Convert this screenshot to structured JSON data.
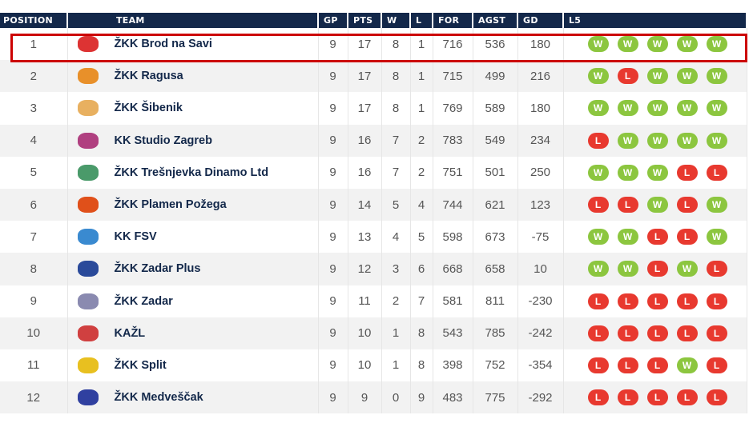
{
  "headers": {
    "position": "POSITION",
    "team": "TEAM",
    "gp": "GP",
    "pts": "PTS",
    "w": "W",
    "l": "L",
    "for": "FOR",
    "agst": "AGST",
    "gd": "GD",
    "l5": "L5"
  },
  "colors": {
    "header_bg": "#13284a",
    "win": "#8cc63f",
    "loss": "#e8392f",
    "highlight": "#cc0000"
  },
  "highlighted_row": 1,
  "rows": [
    {
      "pos": "1",
      "team": "ŽKK Brod na Savi",
      "gp": "9",
      "pts": "17",
      "w": "8",
      "l": "1",
      "for": "716",
      "agst": "536",
      "gd": "180",
      "l5": [
        "W",
        "W",
        "W",
        "W",
        "W"
      ],
      "logo": "#d33"
    },
    {
      "pos": "2",
      "team": "ŽKK Ragusa",
      "gp": "9",
      "pts": "17",
      "w": "8",
      "l": "1",
      "for": "715",
      "agst": "499",
      "gd": "216",
      "l5": [
        "W",
        "L",
        "W",
        "W",
        "W"
      ],
      "logo": "#e8902a"
    },
    {
      "pos": "3",
      "team": "ŽKK Šibenik",
      "gp": "9",
      "pts": "17",
      "w": "8",
      "l": "1",
      "for": "769",
      "agst": "589",
      "gd": "180",
      "l5": [
        "W",
        "W",
        "W",
        "W",
        "W"
      ],
      "logo": "#e8b060"
    },
    {
      "pos": "4",
      "team": "KK Studio Zagreb",
      "gp": "9",
      "pts": "16",
      "w": "7",
      "l": "2",
      "for": "783",
      "agst": "549",
      "gd": "234",
      "l5": [
        "L",
        "W",
        "W",
        "W",
        "W"
      ],
      "logo": "#b04080"
    },
    {
      "pos": "5",
      "team": "ŽKK Trešnjevka Dinamo Ltd",
      "gp": "9",
      "pts": "16",
      "w": "7",
      "l": "2",
      "for": "751",
      "agst": "501",
      "gd": "250",
      "l5": [
        "W",
        "W",
        "W",
        "L",
        "L"
      ],
      "logo": "#4a9a6a"
    },
    {
      "pos": "6",
      "team": "ŽKK Plamen Požega",
      "gp": "9",
      "pts": "14",
      "w": "5",
      "l": "4",
      "for": "744",
      "agst": "621",
      "gd": "123",
      "l5": [
        "L",
        "L",
        "W",
        "L",
        "W"
      ],
      "logo": "#e0501a"
    },
    {
      "pos": "7",
      "team": "KK FSV",
      "gp": "9",
      "pts": "13",
      "w": "4",
      "l": "5",
      "for": "598",
      "agst": "673",
      "gd": "-75",
      "l5": [
        "W",
        "W",
        "L",
        "L",
        "W"
      ],
      "logo": "#3a8ad0"
    },
    {
      "pos": "8",
      "team": "ŽKK Zadar Plus",
      "gp": "9",
      "pts": "12",
      "w": "3",
      "l": "6",
      "for": "668",
      "agst": "658",
      "gd": "10",
      "l5": [
        "W",
        "W",
        "L",
        "W",
        "L"
      ],
      "logo": "#2a4a9a"
    },
    {
      "pos": "9",
      "team": "ŽKK Zadar",
      "gp": "9",
      "pts": "11",
      "w": "2",
      "l": "7",
      "for": "581",
      "agst": "811",
      "gd": "-230",
      "l5": [
        "L",
        "L",
        "L",
        "L",
        "L"
      ],
      "logo": "#8a8ab0"
    },
    {
      "pos": "10",
      "team": "KAŽL",
      "gp": "9",
      "pts": "10",
      "w": "1",
      "l": "8",
      "for": "543",
      "agst": "785",
      "gd": "-242",
      "l5": [
        "L",
        "L",
        "L",
        "L",
        "L"
      ],
      "logo": "#d04040"
    },
    {
      "pos": "11",
      "team": "ŽKK Split",
      "gp": "9",
      "pts": "10",
      "w": "1",
      "l": "8",
      "for": "398",
      "agst": "752",
      "gd": "-354",
      "l5": [
        "L",
        "L",
        "L",
        "W",
        "L"
      ],
      "logo": "#e8c020"
    },
    {
      "pos": "12",
      "team": "ŽKK Medveščak",
      "gp": "9",
      "pts": "9",
      "w": "0",
      "l": "9",
      "for": "483",
      "agst": "775",
      "gd": "-292",
      "l5": [
        "L",
        "L",
        "L",
        "L",
        "L"
      ],
      "logo": "#3040a0"
    }
  ]
}
